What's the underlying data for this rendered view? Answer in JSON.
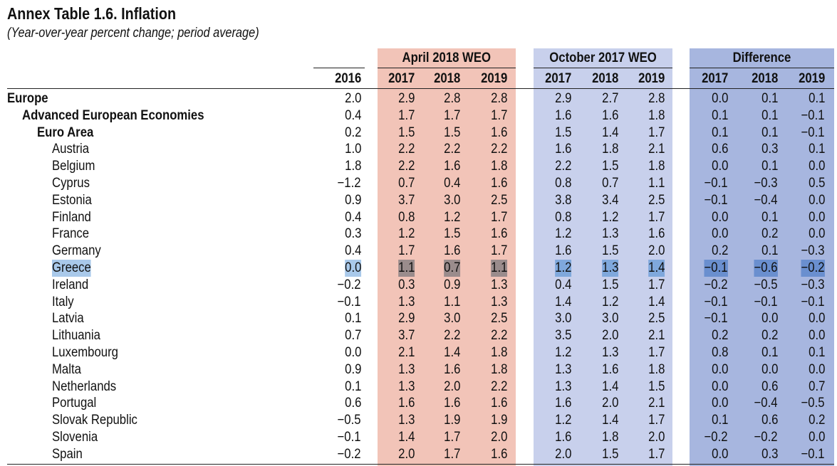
{
  "title": "Annex Table 1.6. Inflation",
  "subtitle": "(Year-over-year percent change; period average)",
  "groups": {
    "april": "April 2018 WEO",
    "october": "October 2017 WEO",
    "difference": "Difference"
  },
  "years": {
    "base": "2016",
    "april": [
      "2017",
      "2018",
      "2019"
    ],
    "october": [
      "2017",
      "2018",
      "2019"
    ],
    "difference": [
      "2017",
      "2018",
      "2019"
    ]
  },
  "colors": {
    "april_band": "#f2c4b8",
    "october_band": "#c8d0ec",
    "difference_band": "#a7b6df",
    "selection": "#a9c9ea"
  },
  "selected_row": "Greece",
  "rows": [
    {
      "label": "Europe",
      "level": 0,
      "values": [
        "2.0",
        "2.9",
        "2.8",
        "2.8",
        "2.9",
        "2.7",
        "2.8",
        "0.0",
        "0.1",
        "0.1"
      ]
    },
    {
      "label": "Advanced European Economies",
      "level": 1,
      "values": [
        "0.4",
        "1.7",
        "1.7",
        "1.7",
        "1.6",
        "1.6",
        "1.8",
        "0.1",
        "0.1",
        "−0.1"
      ]
    },
    {
      "label": "Euro Area",
      "level": 2,
      "values": [
        "0.2",
        "1.5",
        "1.5",
        "1.6",
        "1.5",
        "1.4",
        "1.7",
        "0.1",
        "0.1",
        "−0.1"
      ]
    },
    {
      "label": "Austria",
      "level": 3,
      "values": [
        "1.0",
        "2.2",
        "2.2",
        "2.2",
        "1.6",
        "1.8",
        "2.1",
        "0.6",
        "0.3",
        "0.1"
      ]
    },
    {
      "label": "Belgium",
      "level": 3,
      "values": [
        "1.8",
        "2.2",
        "1.6",
        "1.8",
        "2.2",
        "1.5",
        "1.8",
        "0.0",
        "0.1",
        "0.0"
      ]
    },
    {
      "label": "Cyprus",
      "level": 3,
      "values": [
        "−1.2",
        "0.7",
        "0.4",
        "1.6",
        "0.8",
        "0.7",
        "1.1",
        "−0.1",
        "−0.3",
        "0.5"
      ]
    },
    {
      "label": "Estonia",
      "level": 3,
      "values": [
        "0.9",
        "3.7",
        "3.0",
        "2.5",
        "3.8",
        "3.4",
        "2.5",
        "−0.1",
        "−0.4",
        "0.0"
      ]
    },
    {
      "label": "Finland",
      "level": 3,
      "values": [
        "0.4",
        "0.8",
        "1.2",
        "1.7",
        "0.8",
        "1.2",
        "1.7",
        "0.0",
        "0.1",
        "0.0"
      ]
    },
    {
      "label": "France",
      "level": 3,
      "values": [
        "0.3",
        "1.2",
        "1.5",
        "1.6",
        "1.2",
        "1.3",
        "1.6",
        "0.0",
        "0.2",
        "0.0"
      ]
    },
    {
      "label": "Germany",
      "level": 3,
      "values": [
        "0.4",
        "1.7",
        "1.6",
        "1.7",
        "1.6",
        "1.5",
        "2.0",
        "0.2",
        "0.1",
        "−0.3"
      ]
    },
    {
      "label": "Greece",
      "level": 3,
      "values": [
        "0.0",
        "1.1",
        "0.7",
        "1.1",
        "1.2",
        "1.3",
        "1.4",
        "−0.1",
        "−0.6",
        "−0.2"
      ]
    },
    {
      "label": "Ireland",
      "level": 3,
      "values": [
        "−0.2",
        "0.3",
        "0.9",
        "1.3",
        "0.4",
        "1.5",
        "1.7",
        "−0.2",
        "−0.5",
        "−0.3"
      ]
    },
    {
      "label": "Italy",
      "level": 3,
      "values": [
        "−0.1",
        "1.3",
        "1.1",
        "1.3",
        "1.4",
        "1.2",
        "1.4",
        "−0.1",
        "−0.1",
        "−0.1"
      ]
    },
    {
      "label": "Latvia",
      "level": 3,
      "values": [
        "0.1",
        "2.9",
        "3.0",
        "2.5",
        "3.0",
        "3.0",
        "2.5",
        "−0.1",
        "0.0",
        "0.0"
      ]
    },
    {
      "label": "Lithuania",
      "level": 3,
      "values": [
        "0.7",
        "3.7",
        "2.2",
        "2.2",
        "3.5",
        "2.0",
        "2.1",
        "0.2",
        "0.2",
        "0.0"
      ]
    },
    {
      "label": "Luxembourg",
      "level": 3,
      "values": [
        "0.0",
        "2.1",
        "1.4",
        "1.8",
        "1.2",
        "1.3",
        "1.7",
        "0.8",
        "0.1",
        "0.1"
      ]
    },
    {
      "label": "Malta",
      "level": 3,
      "values": [
        "0.9",
        "1.3",
        "1.6",
        "1.8",
        "1.3",
        "1.6",
        "1.8",
        "0.0",
        "0.0",
        "0.0"
      ]
    },
    {
      "label": "Netherlands",
      "level": 3,
      "values": [
        "0.1",
        "1.3",
        "2.0",
        "2.2",
        "1.3",
        "1.4",
        "1.5",
        "0.0",
        "0.6",
        "0.7"
      ]
    },
    {
      "label": "Portugal",
      "level": 3,
      "values": [
        "0.6",
        "1.6",
        "1.6",
        "1.6",
        "1.6",
        "2.0",
        "2.1",
        "0.0",
        "−0.4",
        "−0.5"
      ]
    },
    {
      "label": "Slovak Republic",
      "level": 3,
      "values": [
        "−0.5",
        "1.3",
        "1.9",
        "1.9",
        "1.2",
        "1.4",
        "1.7",
        "0.1",
        "0.6",
        "0.2"
      ]
    },
    {
      "label": "Slovenia",
      "level": 3,
      "values": [
        "−0.1",
        "1.4",
        "1.7",
        "2.0",
        "1.6",
        "1.8",
        "2.0",
        "−0.2",
        "−0.2",
        "0.0"
      ]
    },
    {
      "label": "Spain",
      "level": 3,
      "values": [
        "−0.2",
        "2.0",
        "1.7",
        "1.6",
        "2.0",
        "1.5",
        "1.7",
        "0.0",
        "0.3",
        "−0.1"
      ]
    }
  ]
}
